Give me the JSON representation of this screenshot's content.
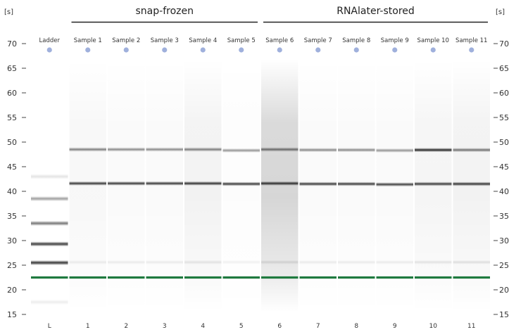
{
  "axis": {
    "unit_label": "[s]",
    "ticks": [
      70,
      65,
      60,
      55,
      50,
      45,
      40,
      35,
      30,
      25,
      20,
      15
    ],
    "ylim": [
      12,
      74
    ]
  },
  "groups": [
    {
      "label": "snap-frozen",
      "lanes": [
        1,
        5
      ]
    },
    {
      "label": "RNAlater-stored",
      "lanes": [
        6,
        11
      ]
    }
  ],
  "lanes": [
    {
      "name": "Ladder",
      "number": "L",
      "ladder": true,
      "bands": [
        {
          "t": 43.0,
          "i": 0.12
        },
        {
          "t": 38.5,
          "i": 0.42
        },
        {
          "t": 33.5,
          "i": 0.6
        },
        {
          "t": 29.3,
          "i": 0.85
        },
        {
          "t": 25.5,
          "i": 0.88
        },
        {
          "t": 17.5,
          "i": 0.08
        }
      ]
    },
    {
      "name": "Sample 1",
      "number": "1",
      "bands": [
        {
          "t": 48.5,
          "i": 0.55
        },
        {
          "t": 41.6,
          "i": 0.85
        },
        {
          "t": 25.6,
          "i": 0.08
        }
      ],
      "smear": 0.03
    },
    {
      "name": "Sample 2",
      "number": "2",
      "bands": [
        {
          "t": 48.5,
          "i": 0.5
        },
        {
          "t": 41.6,
          "i": 0.85
        },
        {
          "t": 25.6,
          "i": 0.08
        }
      ],
      "smear": 0.02
    },
    {
      "name": "Sample 3",
      "number": "3",
      "bands": [
        {
          "t": 48.5,
          "i": 0.5
        },
        {
          "t": 41.6,
          "i": 0.85
        },
        {
          "t": 25.6,
          "i": 0.08
        }
      ],
      "smear": 0.02
    },
    {
      "name": "Sample 4",
      "number": "4",
      "bands": [
        {
          "t": 48.5,
          "i": 0.55
        },
        {
          "t": 41.6,
          "i": 0.88
        },
        {
          "t": 25.6,
          "i": 0.1
        }
      ],
      "smear": 0.05
    },
    {
      "name": "Sample 5",
      "number": "5",
      "bands": [
        {
          "t": 48.3,
          "i": 0.45
        },
        {
          "t": 41.5,
          "i": 0.85
        },
        {
          "t": 25.6,
          "i": 0.06
        }
      ],
      "smear": 0.01
    },
    {
      "name": "Sample 6",
      "number": "6",
      "bands": [
        {
          "t": 48.5,
          "i": 0.6
        },
        {
          "t": 41.6,
          "i": 0.9
        },
        {
          "t": 25.6,
          "i": 0.12
        }
      ],
      "smear": 0.16
    },
    {
      "name": "Sample 7",
      "number": "7",
      "bands": [
        {
          "t": 48.4,
          "i": 0.5
        },
        {
          "t": 41.5,
          "i": 0.85
        },
        {
          "t": 25.6,
          "i": 0.08
        }
      ],
      "smear": 0.02
    },
    {
      "name": "Sample 8",
      "number": "8",
      "bands": [
        {
          "t": 48.4,
          "i": 0.5
        },
        {
          "t": 41.5,
          "i": 0.85
        },
        {
          "t": 25.6,
          "i": 0.08
        }
      ],
      "smear": 0.02
    },
    {
      "name": "Sample 9",
      "number": "9",
      "bands": [
        {
          "t": 48.3,
          "i": 0.45
        },
        {
          "t": 41.4,
          "i": 0.82
        },
        {
          "t": 25.6,
          "i": 0.08
        }
      ],
      "smear": 0.02
    },
    {
      "name": "Sample 10",
      "number": "10",
      "bands": [
        {
          "t": 48.4,
          "i": 0.95
        },
        {
          "t": 41.5,
          "i": 0.85
        },
        {
          "t": 25.6,
          "i": 0.1
        }
      ],
      "smear": 0.04
    },
    {
      "name": "Sample 11",
      "number": "11",
      "bands": [
        {
          "t": 48.4,
          "i": 0.6
        },
        {
          "t": 41.5,
          "i": 0.88
        },
        {
          "t": 25.6,
          "i": 0.12
        }
      ],
      "smear": 0.05
    }
  ],
  "marker": {
    "t": 22.5,
    "color": "#1f7a3f"
  },
  "well_dot_color": "#9fb0dc",
  "band_color": "#1a1a1a"
}
